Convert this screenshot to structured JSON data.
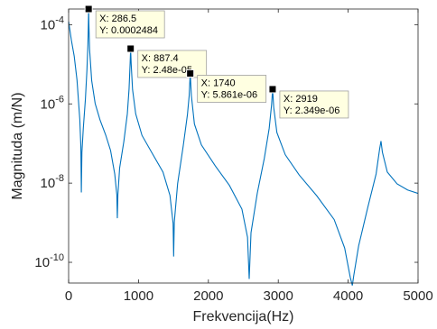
{
  "chart_data": {
    "type": "line",
    "title": "",
    "xlabel": "Frekvencija(Hz)",
    "ylabel": "Magnituda (m/N)",
    "x_scale": "linear",
    "y_scale": "log",
    "xlim": [
      0,
      5000
    ],
    "ylim": [
      3e-11,
      0.0002484
    ],
    "x_ticks": [
      0,
      1000,
      2000,
      3000,
      4000,
      5000
    ],
    "x_tick_labels": [
      "0",
      "1000",
      "2000",
      "3000",
      "4000",
      "5000"
    ],
    "y_ticks": [
      1e-10,
      1e-08,
      1e-06,
      0.0001
    ],
    "y_tick_labels": [
      {
        "base": "10",
        "exp": "-10"
      },
      {
        "base": "10",
        "exp": "-8"
      },
      {
        "base": "10",
        "exp": "-6"
      },
      {
        "base": "10",
        "exp": "-4"
      }
    ],
    "grid": false,
    "box": true,
    "line_color": "#0072BD",
    "series": [
      {
        "points": [
          [
            0,
            0.00012
          ],
          [
            40,
            4e-05
          ],
          [
            80,
            1.6e-05
          ],
          [
            120,
            4e-06
          ],
          [
            160,
            4.05e-07
          ],
          [
            175,
            8.3e-08
          ],
          [
            182,
            5.8e-09
          ],
          [
            190,
            5.9e-08
          ],
          [
            210,
            2.4e-07
          ],
          [
            240,
            1.3e-06
          ],
          [
            262,
            7.1e-06
          ],
          [
            276,
            3.2e-05
          ],
          [
            283,
            0.00011
          ],
          [
            286.5,
            0.0002484
          ],
          [
            290,
            0.000105
          ],
          [
            300,
            2.4e-05
          ],
          [
            330,
            3.9e-06
          ],
          [
            380,
            1.02e-06
          ],
          [
            450,
            3.9e-07
          ],
          [
            530,
            1.65e-07
          ],
          [
            600,
            6.7e-08
          ],
          [
            660,
            1.7e-08
          ],
          [
            690,
            5e-09
          ],
          [
            697,
            1.3e-09
          ],
          [
            705,
            5.1e-09
          ],
          [
            730,
            2.4e-08
          ],
          [
            790,
            1.12e-07
          ],
          [
            840,
            5.6e-07
          ],
          [
            865,
            2.4e-06
          ],
          [
            880,
            1.05e-05
          ],
          [
            887.4,
            2.48e-05
          ],
          [
            895,
            1.05e-05
          ],
          [
            915,
            2.3e-06
          ],
          [
            960,
            5.6e-07
          ],
          [
            1050,
            1.6e-07
          ],
          [
            1200,
            5.5e-08
          ],
          [
            1350,
            1.9e-08
          ],
          [
            1450,
            4.9e-09
          ],
          [
            1495,
            9.6e-10
          ],
          [
            1503,
            1.4e-10
          ],
          [
            1512,
            1.02e-09
          ],
          [
            1560,
            9.7e-09
          ],
          [
            1640,
            8.7e-08
          ],
          [
            1700,
            5.3e-07
          ],
          [
            1725,
            1.6e-06
          ],
          [
            1740,
            5.861e-06
          ],
          [
            1757,
            1.6e-06
          ],
          [
            1800,
            3.1e-07
          ],
          [
            1900,
            9.2e-08
          ],
          [
            2100,
            2.7e-08
          ],
          [
            2300,
            8.8e-09
          ],
          [
            2480,
            2.2e-09
          ],
          [
            2560,
            4.3e-10
          ],
          [
            2584,
            3.8e-11
          ],
          [
            2610,
            5.6e-10
          ],
          [
            2700,
            5.6e-09
          ],
          [
            2800,
            4.2e-08
          ],
          [
            2870,
            2.4e-07
          ],
          [
            2905,
            9.8e-07
          ],
          [
            2919,
            2.349e-06
          ],
          [
            2935,
            8.1e-07
          ],
          [
            2980,
            1.9e-07
          ],
          [
            3100,
            5.2e-08
          ],
          [
            3300,
            1.6e-08
          ],
          [
            3550,
            4.8e-09
          ],
          [
            3800,
            1.2e-09
          ],
          [
            3950,
            2.3e-10
          ],
          [
            4030,
            4.2e-11
          ],
          [
            4060,
            2.6e-11
          ],
          [
            4080,
            4.6e-11
          ],
          [
            4150,
            2.6e-10
          ],
          [
            4280,
            2.4e-09
          ],
          [
            4400,
            1.7e-08
          ],
          [
            4450,
            7.2e-08
          ],
          [
            4470,
            1.15e-07
          ],
          [
            4490,
            6e-08
          ],
          [
            4560,
            1.9e-08
          ],
          [
            4700,
            9.6e-09
          ],
          [
            4850,
            6.7e-09
          ],
          [
            5000,
            5.5e-09
          ]
        ]
      }
    ],
    "datatips": [
      {
        "x": 286.5,
        "y": 0.0002484,
        "x_text": "X: 286.5",
        "y_text": "Y: 0.0002484"
      },
      {
        "x": 887.4,
        "y": 2.48e-05,
        "x_text": "X: 887.4",
        "y_text": "Y: 2.48e-05"
      },
      {
        "x": 1740,
        "y": 5.861e-06,
        "x_text": "X: 1740",
        "y_text": "Y: 5.861e-06"
      },
      {
        "x": 2919,
        "y": 2.349e-06,
        "x_text": "X: 2919",
        "y_text": "Y: 2.349e-06"
      }
    ]
  }
}
